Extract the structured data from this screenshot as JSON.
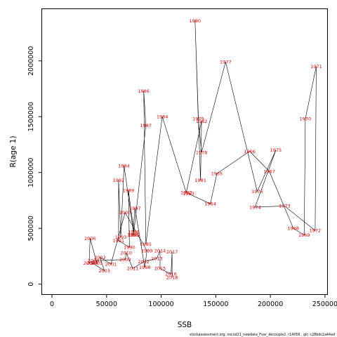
{
  "chart_data": {
    "type": "line",
    "xlabel": "SSB",
    "ylabel": "R(age 1)",
    "xlim": [
      -9000,
      252000
    ],
    "ylim": [
      -90000,
      2470000
    ],
    "x_ticks": [
      0,
      50000,
      100000,
      150000,
      200000,
      250000
    ],
    "x_tick_labels": [
      "0",
      "50000",
      "100000",
      "150000",
      "200000",
      "250000"
    ],
    "y_ticks": [
      0,
      500000,
      1000000,
      1500000,
      2000000
    ],
    "y_tick_labels": [
      "0",
      "500000",
      "1000000",
      "1500000",
      "2000000"
    ],
    "line_color": "#000000",
    "label_color": "#e00000",
    "footer": "stockassessment.org, nscod21_newdata_Fvar_decouple2, r14056 , git: c28bdc2a44ad",
    "points": [
      {
        "year": "1963",
        "ssb": 125000,
        "r": 810000
      },
      {
        "year": "1964",
        "ssb": 145000,
        "r": 720000
      },
      {
        "year": "1965",
        "ssb": 151000,
        "r": 990000
      },
      {
        "year": "1966",
        "ssb": 181000,
        "r": 1190000
      },
      {
        "year": "1967",
        "ssb": 199000,
        "r": 1010000
      },
      {
        "year": "1968",
        "ssb": 221000,
        "r": 500000
      },
      {
        "year": "1969",
        "ssb": 231000,
        "r": 440000
      },
      {
        "year": "1970",
        "ssb": 232000,
        "r": 1480000
      },
      {
        "year": "1971",
        "ssb": 242000,
        "r": 1950000
      },
      {
        "year": "1972",
        "ssb": 241000,
        "r": 480000
      },
      {
        "year": "1973",
        "ssb": 213000,
        "r": 700000
      },
      {
        "year": "1974",
        "ssb": 186000,
        "r": 690000
      },
      {
        "year": "1975",
        "ssb": 205000,
        "r": 1200000
      },
      {
        "year": "1976",
        "ssb": 188000,
        "r": 830000
      },
      {
        "year": "1977",
        "ssb": 159000,
        "r": 1990000
      },
      {
        "year": "1978",
        "ssb": 137000,
        "r": 1180000
      },
      {
        "year": "1979",
        "ssb": 134000,
        "r": 1480000
      },
      {
        "year": "1980",
        "ssb": 131000,
        "r": 2360000
      },
      {
        "year": "1981",
        "ssb": 136000,
        "r": 930000
      },
      {
        "year": "1982",
        "ssb": 137000,
        "r": 1460000
      },
      {
        "year": "1983",
        "ssb": 123000,
        "r": 820000
      },
      {
        "year": "1984",
        "ssb": 101000,
        "r": 1500000
      },
      {
        "year": "1985",
        "ssb": 86000,
        "r": 360000
      },
      {
        "year": "1986",
        "ssb": 84000,
        "r": 1730000
      },
      {
        "year": "1987",
        "ssb": 86000,
        "r": 1420000
      },
      {
        "year": "1988",
        "ssb": 75000,
        "r": 470000
      },
      {
        "year": "1989",
        "ssb": 70000,
        "r": 840000
      },
      {
        "year": "1990",
        "ssb": 71000,
        "r": 330000
      },
      {
        "year": "1991",
        "ssb": 61000,
        "r": 390000
      },
      {
        "year": "1992",
        "ssb": 61000,
        "r": 930000
      },
      {
        "year": "1993",
        "ssb": 63000,
        "r": 420000
      },
      {
        "year": "1994",
        "ssb": 66000,
        "r": 1060000
      },
      {
        "year": "1995",
        "ssb": 75000,
        "r": 440000
      },
      {
        "year": "1996",
        "ssb": 74000,
        "r": 440000
      },
      {
        "year": "1997",
        "ssb": 76000,
        "r": 680000
      },
      {
        "year": "1998",
        "ssb": 85000,
        "r": 150000
      },
      {
        "year": "1999",
        "ssb": 87000,
        "r": 300000
      },
      {
        "year": "2000",
        "ssb": 67000,
        "r": 640000
      },
      {
        "year": "2001",
        "ssb": 54000,
        "r": 180000
      },
      {
        "year": "2002",
        "ssb": 44000,
        "r": 240000
      },
      {
        "year": "2003",
        "ssb": 48000,
        "r": 120000
      },
      {
        "year": "2004",
        "ssb": 37000,
        "r": 190000
      },
      {
        "year": "2005",
        "ssb": 41000,
        "r": 190000
      },
      {
        "year": "2006",
        "ssb": 35000,
        "r": 410000
      },
      {
        "year": "2007",
        "ssb": 34000,
        "r": 190000
      },
      {
        "year": "2008",
        "ssb": 38000,
        "r": 210000
      },
      {
        "year": "2009",
        "ssb": 67000,
        "r": 220000
      },
      {
        "year": "2010",
        "ssb": 68000,
        "r": 280000
      },
      {
        "year": "2011",
        "ssb": 74000,
        "r": 140000
      },
      {
        "year": "2012",
        "ssb": 84000,
        "r": 200000
      },
      {
        "year": "2013",
        "ssb": 96000,
        "r": 230000
      },
      {
        "year": "2014",
        "ssb": 99000,
        "r": 300000
      },
      {
        "year": "2015",
        "ssb": 99000,
        "r": 140000
      },
      {
        "year": "2016",
        "ssb": 109000,
        "r": 90000
      },
      {
        "year": "2017",
        "ssb": 110000,
        "r": 290000
      },
      {
        "year": "2018",
        "ssb": 110000,
        "r": 60000
      }
    ]
  }
}
